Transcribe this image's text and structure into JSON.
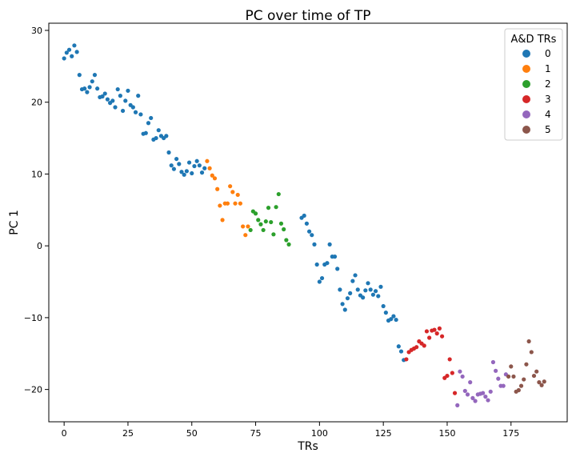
{
  "chart_data": {
    "type": "scatter",
    "title": "PC over time of TP",
    "xlabel": "TRs",
    "ylabel": "PC 1",
    "xlim": [
      -6,
      197
    ],
    "ylim": [
      -24.5,
      31
    ],
    "xticks": [
      0,
      25,
      50,
      75,
      100,
      125,
      150,
      175
    ],
    "yticks": [
      -20,
      -10,
      0,
      10,
      20,
      30
    ],
    "xtick_labels": [
      "0",
      "25",
      "50",
      "75",
      "100",
      "125",
      "150",
      "175"
    ],
    "ytick_labels": [
      "−20",
      "−10",
      "0",
      "10",
      "20",
      "30"
    ],
    "grid": false,
    "legend": {
      "title": "A&D TRs",
      "position": "top-right",
      "entries": [
        "0",
        "1",
        "2",
        "3",
        "4",
        "5"
      ]
    },
    "series": [
      {
        "name": "0",
        "color": "#1f77b4",
        "x": [
          0,
          1,
          2,
          3,
          4,
          5,
          6,
          7,
          8,
          9,
          10,
          11,
          12,
          13,
          14,
          15,
          16,
          17,
          18,
          19,
          20,
          21,
          22,
          23,
          24,
          25,
          26,
          27,
          28,
          29,
          30,
          31,
          32,
          33,
          34,
          35,
          36,
          37,
          38,
          39,
          40,
          41,
          42,
          43,
          44,
          45,
          46,
          47,
          48,
          49,
          50,
          51,
          52,
          53,
          54,
          55,
          93,
          94,
          95,
          96,
          97,
          98,
          99,
          100,
          101,
          102,
          103,
          104,
          105,
          106,
          107,
          108,
          109,
          110,
          111,
          112,
          113,
          114,
          115,
          116,
          117,
          118,
          119,
          120,
          121,
          122,
          123,
          124,
          125,
          126,
          127,
          128,
          129,
          130,
          131,
          132,
          133
        ],
        "y": [
          26.1,
          26.9,
          27.3,
          26.4,
          27.9,
          27.0,
          23.8,
          21.8,
          21.9,
          21.4,
          22.1,
          22.9,
          23.8,
          21.9,
          20.7,
          20.8,
          21.2,
          20.4,
          19.9,
          20.2,
          19.3,
          21.8,
          20.9,
          18.8,
          20.2,
          21.6,
          19.6,
          19.3,
          18.6,
          20.9,
          18.3,
          15.6,
          15.7,
          17.1,
          17.8,
          14.8,
          15.0,
          16.1,
          15.3,
          15.0,
          15.3,
          13.0,
          11.2,
          10.7,
          12.1,
          11.4,
          10.3,
          9.9,
          10.4,
          11.6,
          10.1,
          11.1,
          11.8,
          11.2,
          10.2,
          10.8,
          3.9,
          4.2,
          3.1,
          2.0,
          1.5,
          0.2,
          -2.6,
          -5.0,
          -4.5,
          -2.6,
          -2.4,
          0.2,
          -1.5,
          -1.5,
          -3.2,
          -6.1,
          -8.1,
          -8.9,
          -7.3,
          -6.6,
          -4.9,
          -4.1,
          -6.1,
          -6.9,
          -7.2,
          -6.2,
          -5.2,
          -6.1,
          -6.8,
          -6.3,
          -7.0,
          -5.7,
          -8.4,
          -9.3,
          -10.4,
          -10.2,
          -9.8,
          -10.3,
          -14.0,
          -14.7,
          -15.9
        ]
      },
      {
        "name": "1",
        "color": "#ff7f0e",
        "x": [
          56,
          57,
          58,
          59,
          60,
          61,
          62,
          63,
          64,
          65,
          66,
          67,
          68,
          69,
          70,
          71,
          72
        ],
        "y": [
          11.8,
          10.8,
          9.8,
          9.4,
          7.9,
          5.6,
          3.6,
          5.9,
          5.9,
          8.3,
          7.5,
          5.9,
          7.1,
          5.9,
          2.7,
          1.5,
          2.7
        ]
      },
      {
        "name": "2",
        "color": "#2ca02c",
        "x": [
          73,
          74,
          75,
          76,
          77,
          78,
          79,
          80,
          81,
          82,
          83,
          84,
          85,
          86,
          87,
          88
        ],
        "y": [
          2.2,
          4.8,
          4.5,
          3.6,
          3.0,
          2.2,
          3.4,
          5.3,
          3.3,
          1.6,
          5.4,
          7.2,
          3.1,
          2.3,
          0.8,
          0.2
        ]
      },
      {
        "name": "3",
        "color": "#d62728",
        "x": [
          134,
          135,
          136,
          137,
          138,
          139,
          140,
          141,
          142,
          143,
          144,
          145,
          146,
          147,
          148,
          149,
          150,
          151,
          152,
          153
        ],
        "y": [
          -15.8,
          -14.8,
          -14.5,
          -14.3,
          -14.1,
          -13.3,
          -13.6,
          -13.9,
          -11.9,
          -12.8,
          -11.8,
          -11.7,
          -12.2,
          -11.5,
          -12.6,
          -18.4,
          -18.1,
          -15.8,
          -17.7,
          -20.5
        ]
      },
      {
        "name": "4",
        "color": "#9467bd",
        "x": [
          154,
          155,
          156,
          157,
          158,
          159,
          160,
          161,
          162,
          163,
          164,
          165,
          166,
          167,
          168,
          169,
          170,
          171,
          172,
          173
        ],
        "y": [
          -22.2,
          -17.5,
          -18.2,
          -20.2,
          -20.7,
          -19.0,
          -21.2,
          -21.6,
          -20.7,
          -20.6,
          -20.5,
          -21.0,
          -21.5,
          -20.3,
          -16.2,
          -17.4,
          -18.5,
          -19.5,
          -19.5,
          -17.9
        ]
      },
      {
        "name": "5",
        "color": "#8c564b",
        "x": [
          174,
          175,
          176,
          177,
          178,
          179,
          180,
          181,
          182,
          183,
          184,
          185,
          186,
          187,
          188
        ],
        "y": [
          -18.2,
          -16.8,
          -18.2,
          -20.3,
          -20.1,
          -19.5,
          -18.6,
          -16.5,
          -13.3,
          -14.8,
          -18.1,
          -17.5,
          -19.0,
          -19.4,
          -18.9
        ]
      }
    ]
  }
}
